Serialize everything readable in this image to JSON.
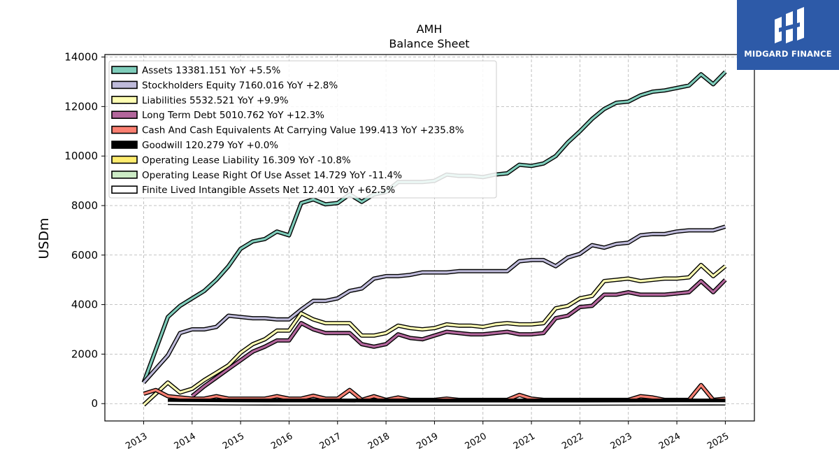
{
  "chart_data": {
    "type": "line",
    "title": "AMH",
    "subtitle": "Balance  Sheet",
    "ylabel": "USDm",
    "xlabel": "",
    "ylim": [
      -700,
      14100
    ],
    "xlim": [
      2012.2,
      2025.6
    ],
    "yticks": [
      0,
      2000,
      4000,
      6000,
      8000,
      10000,
      12000,
      14000
    ],
    "xticks": [
      2013,
      2014,
      2015,
      2016,
      2017,
      2018,
      2019,
      2020,
      2021,
      2022,
      2023,
      2024,
      2025
    ],
    "grid": true,
    "legend_position": "top-left",
    "series": [
      {
        "name": "Assets",
        "legend": "Assets  13381.151 YoY +5.5%",
        "color": "#7fcdbb",
        "x": [
          2013.0,
          2013.5,
          2013.75,
          2014.0,
          2014.25,
          2014.5,
          2014.75,
          2015.0,
          2015.25,
          2015.5,
          2015.75,
          2016.0,
          2016.25,
          2016.5,
          2016.75,
          2017.0,
          2017.25,
          2017.5,
          2017.75,
          2018.0,
          2018.25,
          2018.5,
          2018.75,
          2019.0,
          2019.25,
          2019.5,
          2019.75,
          2020.0,
          2020.25,
          2020.5,
          2020.75,
          2021.0,
          2021.25,
          2021.5,
          2021.75,
          2022.0,
          2022.25,
          2022.5,
          2022.75,
          2023.0,
          2023.25,
          2023.5,
          2023.75,
          2024.0,
          2024.25,
          2024.5,
          2024.75,
          2025.0
        ],
        "values": [
          850,
          3500,
          3950,
          4250,
          4550,
          5000,
          5550,
          6250,
          6550,
          6650,
          6950,
          6800,
          8100,
          8250,
          8050,
          8100,
          8450,
          8150,
          8450,
          8550,
          8950,
          8950,
          8950,
          9000,
          9250,
          9200,
          9200,
          9150,
          9250,
          9300,
          9650,
          9600,
          9700,
          10000,
          10550,
          11000,
          11500,
          11900,
          12150,
          12200,
          12450,
          12600,
          12650,
          12750,
          12850,
          13300,
          12900,
          13400
        ]
      },
      {
        "name": "Stockholders Equity",
        "legend": "Stockholders Equity  7160.016 YoY +2.8%",
        "color": "#bebada",
        "x": [
          2013.0,
          2013.5,
          2013.75,
          2014.0,
          2014.25,
          2014.5,
          2014.75,
          2015.0,
          2015.25,
          2015.5,
          2015.75,
          2016.0,
          2016.25,
          2016.5,
          2016.75,
          2017.0,
          2017.25,
          2017.5,
          2017.75,
          2018.0,
          2018.25,
          2018.5,
          2018.75,
          2019.0,
          2019.25,
          2019.5,
          2019.75,
          2020.0,
          2020.25,
          2020.5,
          2020.75,
          2021.0,
          2021.25,
          2021.5,
          2021.75,
          2022.0,
          2022.25,
          2022.5,
          2022.75,
          2023.0,
          2023.25,
          2023.5,
          2023.75,
          2024.0,
          2024.25,
          2024.5,
          2024.75,
          2025.0
        ],
        "values": [
          850,
          1950,
          2850,
          3000,
          3000,
          3100,
          3550,
          3500,
          3450,
          3450,
          3400,
          3400,
          3800,
          4150,
          4150,
          4250,
          4550,
          4650,
          5050,
          5150,
          5150,
          5200,
          5300,
          5300,
          5300,
          5350,
          5350,
          5350,
          5350,
          5350,
          5750,
          5800,
          5800,
          5550,
          5900,
          6050,
          6400,
          6300,
          6450,
          6500,
          6800,
          6850,
          6850,
          6950,
          7000,
          7000,
          7000,
          7150
        ]
      },
      {
        "name": "Liabilities",
        "legend": "Liabilities  5532.521 YoY +9.9%",
        "color": "#ffffb3",
        "x": [
          2013.0,
          2013.5,
          2013.75,
          2014.0,
          2014.25,
          2014.5,
          2014.75,
          2015.0,
          2015.25,
          2015.5,
          2015.75,
          2016.0,
          2016.25,
          2016.5,
          2016.75,
          2017.0,
          2017.25,
          2017.5,
          2017.75,
          2018.0,
          2018.25,
          2018.5,
          2018.75,
          2019.0,
          2019.25,
          2019.5,
          2019.75,
          2020.0,
          2020.25,
          2020.5,
          2020.75,
          2021.0,
          2021.25,
          2021.5,
          2021.75,
          2022.0,
          2022.25,
          2022.5,
          2022.75,
          2023.0,
          2023.25,
          2023.5,
          2023.75,
          2024.0,
          2024.25,
          2024.5,
          2024.75,
          2025.0
        ],
        "values": [
          -50,
          850,
          450,
          600,
          950,
          1250,
          1550,
          2050,
          2400,
          2600,
          2950,
          2950,
          3650,
          3400,
          3250,
          3250,
          3250,
          2750,
          2750,
          2850,
          3150,
          3050,
          3000,
          3050,
          3200,
          3150,
          3150,
          3100,
          3200,
          3250,
          3200,
          3200,
          3250,
          3850,
          3950,
          4250,
          4350,
          4950,
          5000,
          5050,
          4950,
          5000,
          5050,
          5050,
          5100,
          5600,
          5150,
          5550
        ]
      },
      {
        "name": "Long Term Debt",
        "legend": "Long Term Debt  5010.762 YoY +12.3%",
        "color": "#b3669c",
        "x": [
          2013.0,
          2013.5,
          2013.75,
          2014.0,
          2014.25,
          2014.5,
          2014.75,
          2015.0,
          2015.25,
          2015.5,
          2015.75,
          2016.0,
          2016.25,
          2016.5,
          2016.75,
          2017.0,
          2017.25,
          2017.5,
          2017.75,
          2018.0,
          2018.25,
          2018.5,
          2018.75,
          2019.0,
          2019.25,
          2019.5,
          2019.75,
          2020.0,
          2020.25,
          2020.5,
          2020.75,
          2021.0,
          2021.25,
          2021.5,
          2021.75,
          2022.0,
          2022.25,
          2022.5,
          2022.75,
          2023.0,
          2023.25,
          2023.5,
          2023.75,
          2024.0,
          2024.25,
          2024.5,
          2024.75,
          2025.0
        ],
        "values": [
          null,
          null,
          null,
          300,
          700,
          1050,
          1400,
          1750,
          2100,
          2300,
          2550,
          2550,
          3250,
          3000,
          2850,
          2850,
          2850,
          2400,
          2300,
          2400,
          2800,
          2650,
          2600,
          2750,
          2900,
          2850,
          2800,
          2800,
          2850,
          2900,
          2800,
          2800,
          2850,
          3450,
          3550,
          3900,
          3950,
          4400,
          4400,
          4500,
          4400,
          4400,
          4400,
          4450,
          4500,
          4950,
          4500,
          5000
        ]
      },
      {
        "name": "Cash And Cash Equivalents At Carrying Value",
        "legend": "Cash And Cash Equivalents At Carrying Value  199.413 YoY +235.8%",
        "color": "#fb8072",
        "x": [
          2013.0,
          2013.25,
          2013.5,
          2013.75,
          2014.0,
          2014.25,
          2014.5,
          2014.75,
          2015.0,
          2015.25,
          2015.5,
          2015.75,
          2016.0,
          2016.25,
          2016.5,
          2016.75,
          2017.0,
          2017.25,
          2017.5,
          2017.75,
          2018.0,
          2018.25,
          2018.5,
          2018.75,
          2019.0,
          2019.25,
          2019.5,
          2019.75,
          2020.0,
          2020.25,
          2020.5,
          2020.75,
          2021.0,
          2021.25,
          2021.5,
          2021.75,
          2022.0,
          2022.25,
          2022.5,
          2022.75,
          2023.0,
          2023.25,
          2023.5,
          2023.75,
          2024.0,
          2024.25,
          2024.5,
          2024.75,
          2025.0
        ],
        "values": [
          400,
          550,
          300,
          250,
          200,
          200,
          300,
          200,
          200,
          200,
          200,
          300,
          200,
          200,
          320,
          200,
          200,
          550,
          150,
          300,
          150,
          250,
          150,
          150,
          150,
          200,
          150,
          150,
          150,
          150,
          150,
          350,
          200,
          150,
          150,
          150,
          150,
          150,
          150,
          150,
          150,
          300,
          250,
          150,
          150,
          150,
          750,
          150,
          200
        ]
      },
      {
        "name": "Goodwill",
        "legend": "Goodwill  120.279 YoY +0.0%",
        "color": "#000000",
        "x": [
          2013.5,
          2014.0,
          2015.0,
          2016.0,
          2017.0,
          2018.0,
          2019.0,
          2020.0,
          2021.0,
          2022.0,
          2023.0,
          2024.0,
          2025.0
        ],
        "values": [
          120,
          120,
          120,
          120,
          120,
          120,
          120,
          120,
          120,
          120,
          120,
          120,
          120
        ]
      },
      {
        "name": "Operating Lease Liability",
        "legend": "Operating Lease Liability  16.309 YoY -10.8%",
        "color": "#ffed6f",
        "x": [
          2019.0,
          2020.0,
          2021.0,
          2022.0,
          2023.0,
          2024.0,
          2025.0
        ],
        "values": [
          25,
          22,
          21,
          20,
          19,
          18,
          16
        ]
      },
      {
        "name": "Operating Lease Right Of Use Asset",
        "legend": "Operating Lease Right Of Use Asset  14.729 YoY -11.4%",
        "color": "#ccebc5",
        "x": [
          2019.0,
          2020.0,
          2021.0,
          2022.0,
          2023.0,
          2024.0,
          2025.0
        ],
        "values": [
          23,
          20,
          19,
          18,
          17,
          16,
          15
        ]
      },
      {
        "name": "Finite Lived Intangible Assets Net",
        "legend": "Finite Lived Intangible Assets Net  12.401 YoY +62.5%",
        "color": "#ffffff",
        "x": [
          2013.5,
          2014.0,
          2015.0,
          2016.0,
          2017.0,
          2018.0,
          2019.0,
          2020.0,
          2021.0,
          2022.0,
          2023.0,
          2024.0,
          2025.0
        ],
        "values": [
          30,
          20,
          10,
          5,
          5,
          3,
          3,
          3,
          3,
          3,
          5,
          8,
          12
        ]
      }
    ]
  },
  "logo": {
    "brand": "MIDGARD FINANCE",
    "background": "#2d5aa8",
    "text_color": "#ffffff"
  }
}
